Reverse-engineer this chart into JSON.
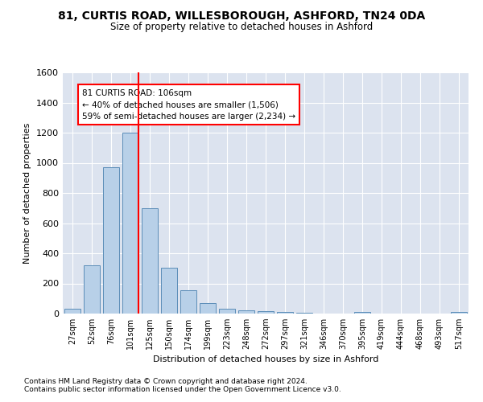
{
  "title": "81, CURTIS ROAD, WILLESBOROUGH, ASHFORD, TN24 0DA",
  "subtitle": "Size of property relative to detached houses in Ashford",
  "xlabel": "Distribution of detached houses by size in Ashford",
  "ylabel": "Number of detached properties",
  "bar_color": "#b8d0e8",
  "bar_edge_color": "#5b8db8",
  "background_color": "#dce3ef",
  "grid_color": "#ffffff",
  "categories": [
    "27sqm",
    "52sqm",
    "76sqm",
    "101sqm",
    "125sqm",
    "150sqm",
    "174sqm",
    "199sqm",
    "223sqm",
    "248sqm",
    "272sqm",
    "297sqm",
    "321sqm",
    "346sqm",
    "370sqm",
    "395sqm",
    "419sqm",
    "444sqm",
    "468sqm",
    "493sqm",
    "517sqm"
  ],
  "values": [
    30,
    320,
    970,
    1200,
    700,
    305,
    155,
    70,
    30,
    20,
    15,
    10,
    5,
    0,
    0,
    12,
    0,
    0,
    0,
    0,
    12
  ],
  "ylim": [
    0,
    1600
  ],
  "yticks": [
    0,
    200,
    400,
    600,
    800,
    1000,
    1200,
    1400,
    1600
  ],
  "red_line_index": 3,
  "annotation_title": "81 CURTIS ROAD: 106sqm",
  "annotation_line1": "← 40% of detached houses are smaller (1,506)",
  "annotation_line2": "59% of semi-detached houses are larger (2,234) →",
  "footnote1": "Contains HM Land Registry data © Crown copyright and database right 2024.",
  "footnote2": "Contains public sector information licensed under the Open Government Licence v3.0."
}
